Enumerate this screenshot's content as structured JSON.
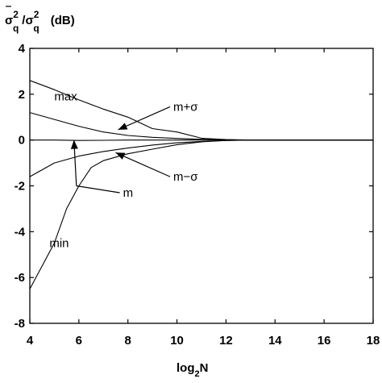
{
  "chart_data": {
    "type": "line",
    "ylabel": {
      "num_base": "σ",
      "num_bar": "‾",
      "num_sup": "2",
      "num_sub": "q",
      "slash": "/",
      "den_base": "σ",
      "den_sup": "2",
      "den_sub": "q",
      "unit": "(dB)"
    },
    "xlabel": {
      "base": "log",
      "sub": "2",
      "var": "N"
    },
    "xlim": [
      4,
      18
    ],
    "ylim": [
      -8,
      4
    ],
    "xticks": [
      4,
      6,
      8,
      10,
      12,
      14,
      16,
      18
    ],
    "yticks": [
      4,
      2,
      0,
      -2,
      -4,
      -6,
      -8
    ],
    "grid": false,
    "series": [
      {
        "name": "max",
        "color": "#000000",
        "x": [
          4,
          5,
          6,
          7,
          8,
          9,
          10,
          11,
          12,
          13,
          14,
          18
        ],
        "y": [
          2.6,
          2.2,
          1.75,
          1.35,
          1.0,
          0.5,
          0.35,
          0.08,
          0.02,
          0.0,
          0.0,
          0.0
        ]
      },
      {
        "name": "m+σ",
        "color": "#000000",
        "x": [
          4,
          5,
          6,
          7,
          8,
          9,
          10,
          11,
          12,
          13,
          14,
          18
        ],
        "y": [
          1.2,
          0.9,
          0.6,
          0.35,
          0.2,
          0.12,
          0.07,
          0.03,
          0.01,
          0.0,
          0.0,
          0.0
        ]
      },
      {
        "name": "m",
        "color": "#000000",
        "x": [
          4,
          5,
          6,
          7,
          8,
          10,
          12,
          14,
          18
        ],
        "y": [
          0.0,
          0.0,
          -0.02,
          -0.01,
          0.0,
          0.0,
          0.0,
          0.0,
          0.0
        ]
      },
      {
        "name": "m−σ",
        "color": "#000000",
        "x": [
          4,
          5,
          6,
          7,
          8,
          9,
          10,
          11,
          12,
          13,
          14,
          18
        ],
        "y": [
          -1.6,
          -1.0,
          -0.7,
          -0.5,
          -0.35,
          -0.22,
          -0.12,
          -0.06,
          -0.02,
          0.0,
          0.0,
          0.0
        ]
      },
      {
        "name": "min",
        "color": "#000000",
        "x": [
          4,
          5,
          5.5,
          6,
          6.5,
          7,
          8,
          9,
          10,
          11,
          12,
          13,
          14,
          18
        ],
        "y": [
          -6.5,
          -4.5,
          -3.0,
          -2.0,
          -1.2,
          -0.9,
          -0.6,
          -0.4,
          -0.2,
          -0.08,
          -0.02,
          0.0,
          0.0,
          0.0
        ]
      }
    ],
    "annotations": [
      {
        "text": "max",
        "x": 5.0,
        "y": 1.9
      },
      {
        "text": "m+σ",
        "x": 9.85,
        "y": 1.45,
        "arrow_to": [
          7.6,
          0.45
        ]
      },
      {
        "text": "m−σ",
        "x": 9.85,
        "y": -1.6,
        "arrow_to": [
          7.5,
          -0.55
        ]
      },
      {
        "text": "m",
        "x": 7.8,
        "y": -2.3,
        "arrow_to": [
          5.8,
          0.0
        ],
        "line_to": [
          5.9,
          -2.0
        ]
      },
      {
        "text": "min",
        "x": 4.8,
        "y": -4.5
      }
    ]
  }
}
